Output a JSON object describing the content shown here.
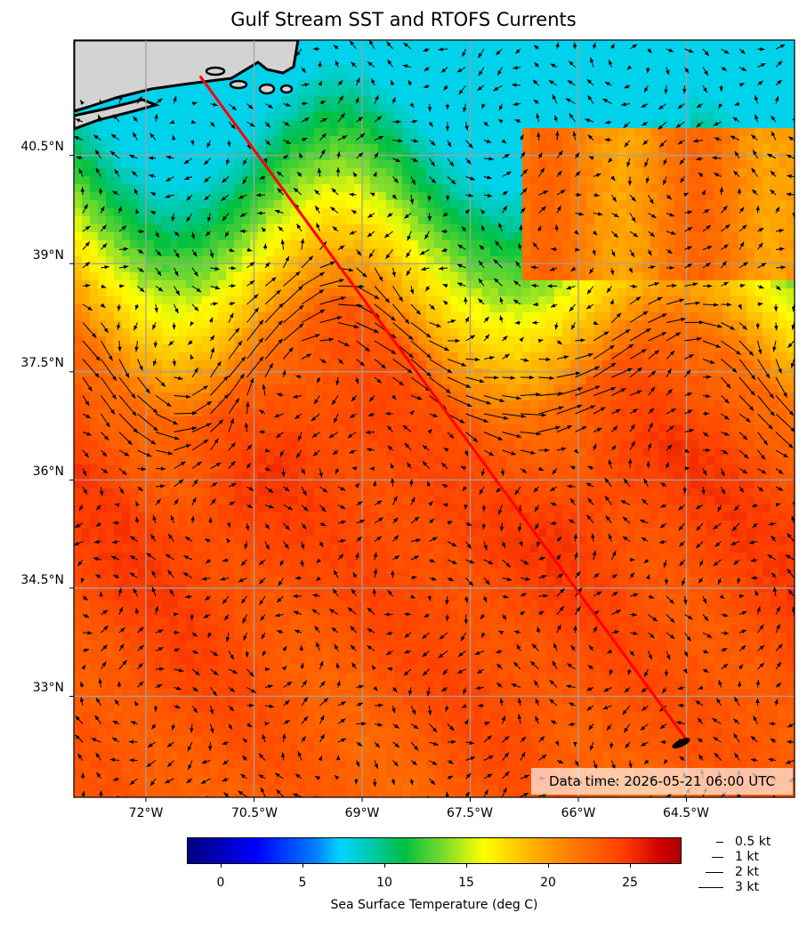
{
  "map": {
    "title": "Gulf Stream SST and RTOFS Currents",
    "lat_labels": [
      "40.5°N",
      "39°N",
      "37.5°N",
      "36°N",
      "34.5°N",
      "33°N"
    ],
    "lon_labels": [
      "72°W",
      "70.5°W",
      "69°W",
      "67.5°W",
      "66°W",
      "64.5°W"
    ],
    "extent": {
      "lon_min": -73.0,
      "lon_max": -63.0,
      "lat_min": 31.6,
      "lat_max": 42.1
    },
    "route": {
      "color": "#ff0000",
      "start": {
        "lon": -71.25,
        "lat": 41.6
      },
      "end": {
        "lon": -64.5,
        "lat": 32.4
      }
    },
    "data_time": "Data time: 2026-05-21 06:00 UTC",
    "land_color": "#d3d3d3"
  },
  "colorbar": {
    "label": "Sea Surface Temperature (deg C)",
    "range": [
      -2,
      28
    ],
    "ticks": [
      "0",
      "5",
      "10",
      "15",
      "20",
      "25"
    ],
    "tick_values": [
      0,
      5,
      10,
      15,
      20,
      25
    ]
  },
  "legend": {
    "items": [
      {
        "label": "0.5 kt",
        "speed": 0.5
      },
      {
        "label": "1 kt",
        "speed": 1
      },
      {
        "label": "2 kt",
        "speed": 2
      },
      {
        "label": "3 kt",
        "speed": 3
      }
    ]
  }
}
